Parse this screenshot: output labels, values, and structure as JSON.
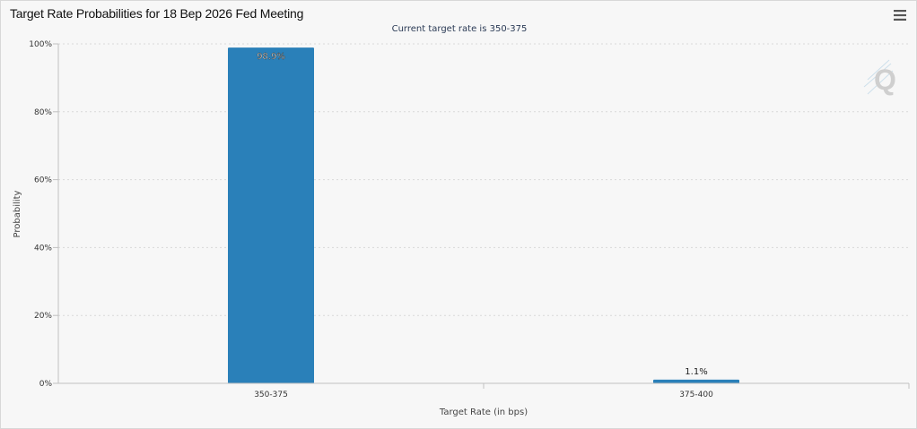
{
  "chart_title": "Target Rate Probabilities for 18 Вер 2026 Fed Meeting",
  "subtitle": "Current target rate is 350-375",
  "colors": {
    "bar": "#2a80b9",
    "grid": "#d9d9d9",
    "axis": "#c0c0c0",
    "background": "#f7f7f7"
  },
  "chart_data": {
    "type": "bar",
    "title": "Target Rate Probabilities for 18 Вер 2026 Fed Meeting",
    "subtitle": "Current target rate is 350-375",
    "categories": [
      "350-375",
      "375-400"
    ],
    "values": [
      98.9,
      1.1
    ],
    "data_labels": [
      "98.9%",
      "1.1%"
    ],
    "xlabel": "Target Rate (in bps)",
    "ylabel": "Probability",
    "ylim": [
      0,
      100
    ],
    "yticks": [
      "0%",
      "20%",
      "40%",
      "60%",
      "80%",
      "100%"
    ],
    "grid": true,
    "legend": "none"
  }
}
